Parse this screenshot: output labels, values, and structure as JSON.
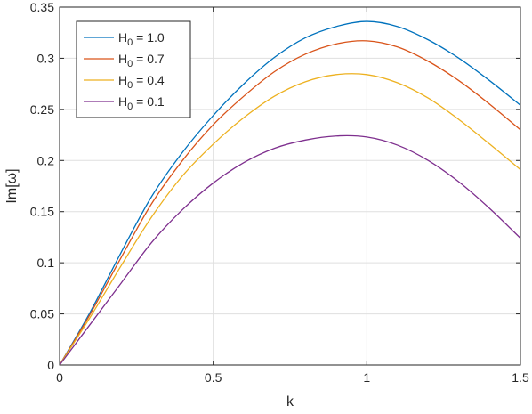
{
  "chart_data": {
    "type": "line",
    "title": "",
    "xlabel": "k",
    "ylabel": "Im[ω]",
    "xlim": [
      0,
      1.5
    ],
    "ylim": [
      0,
      0.35
    ],
    "xticks": [
      0,
      0.5,
      1,
      1.5
    ],
    "xtick_labels": [
      "0",
      "0.5",
      "1",
      "1.5"
    ],
    "yticks": [
      0,
      0.05,
      0.1,
      0.15,
      0.2,
      0.25,
      0.3,
      0.35
    ],
    "ytick_labels": [
      "0",
      "0.05",
      "0.1",
      "0.15",
      "0.2",
      "0.25",
      "0.3",
      "0.35"
    ],
    "grid": true,
    "legend_placement": "top-left",
    "x": [
      0,
      0.1,
      0.2,
      0.3,
      0.4,
      0.5,
      0.6,
      0.7,
      0.8,
      0.9,
      1.0,
      1.1,
      1.2,
      1.3,
      1.4,
      1.5
    ],
    "series": [
      {
        "name": "H₀ = 1.0",
        "legend_base": "H",
        "legend_sub": "0",
        "legend_value": " = 1.0",
        "color": "#0072BD",
        "values": [
          0,
          0.052,
          0.11,
          0.165,
          0.208,
          0.244,
          0.275,
          0.301,
          0.32,
          0.331,
          0.336,
          0.331,
          0.318,
          0.3,
          0.278,
          0.254
        ]
      },
      {
        "name": "H₀ = 0.7",
        "legend_base": "H",
        "legend_sub": "0",
        "legend_value": " = 0.7",
        "color": "#D95319",
        "values": [
          0,
          0.05,
          0.105,
          0.158,
          0.2,
          0.235,
          0.263,
          0.287,
          0.304,
          0.314,
          0.317,
          0.311,
          0.297,
          0.278,
          0.255,
          0.23
        ]
      },
      {
        "name": "H₀ = 0.4",
        "legend_base": "H",
        "legend_sub": "0",
        "legend_value": " = 0.4",
        "color": "#EDB120",
        "values": [
          0,
          0.047,
          0.097,
          0.145,
          0.185,
          0.216,
          0.242,
          0.263,
          0.277,
          0.284,
          0.284,
          0.276,
          0.261,
          0.24,
          0.216,
          0.191
        ]
      },
      {
        "name": "H₀ = 0.1",
        "legend_base": "H",
        "legend_sub": "0",
        "legend_value": " = 0.1",
        "color": "#7E2F8E",
        "values": [
          0,
          0.04,
          0.08,
          0.12,
          0.152,
          0.178,
          0.198,
          0.212,
          0.22,
          0.224,
          0.223,
          0.215,
          0.2,
          0.179,
          0.153,
          0.124
        ]
      }
    ]
  }
}
